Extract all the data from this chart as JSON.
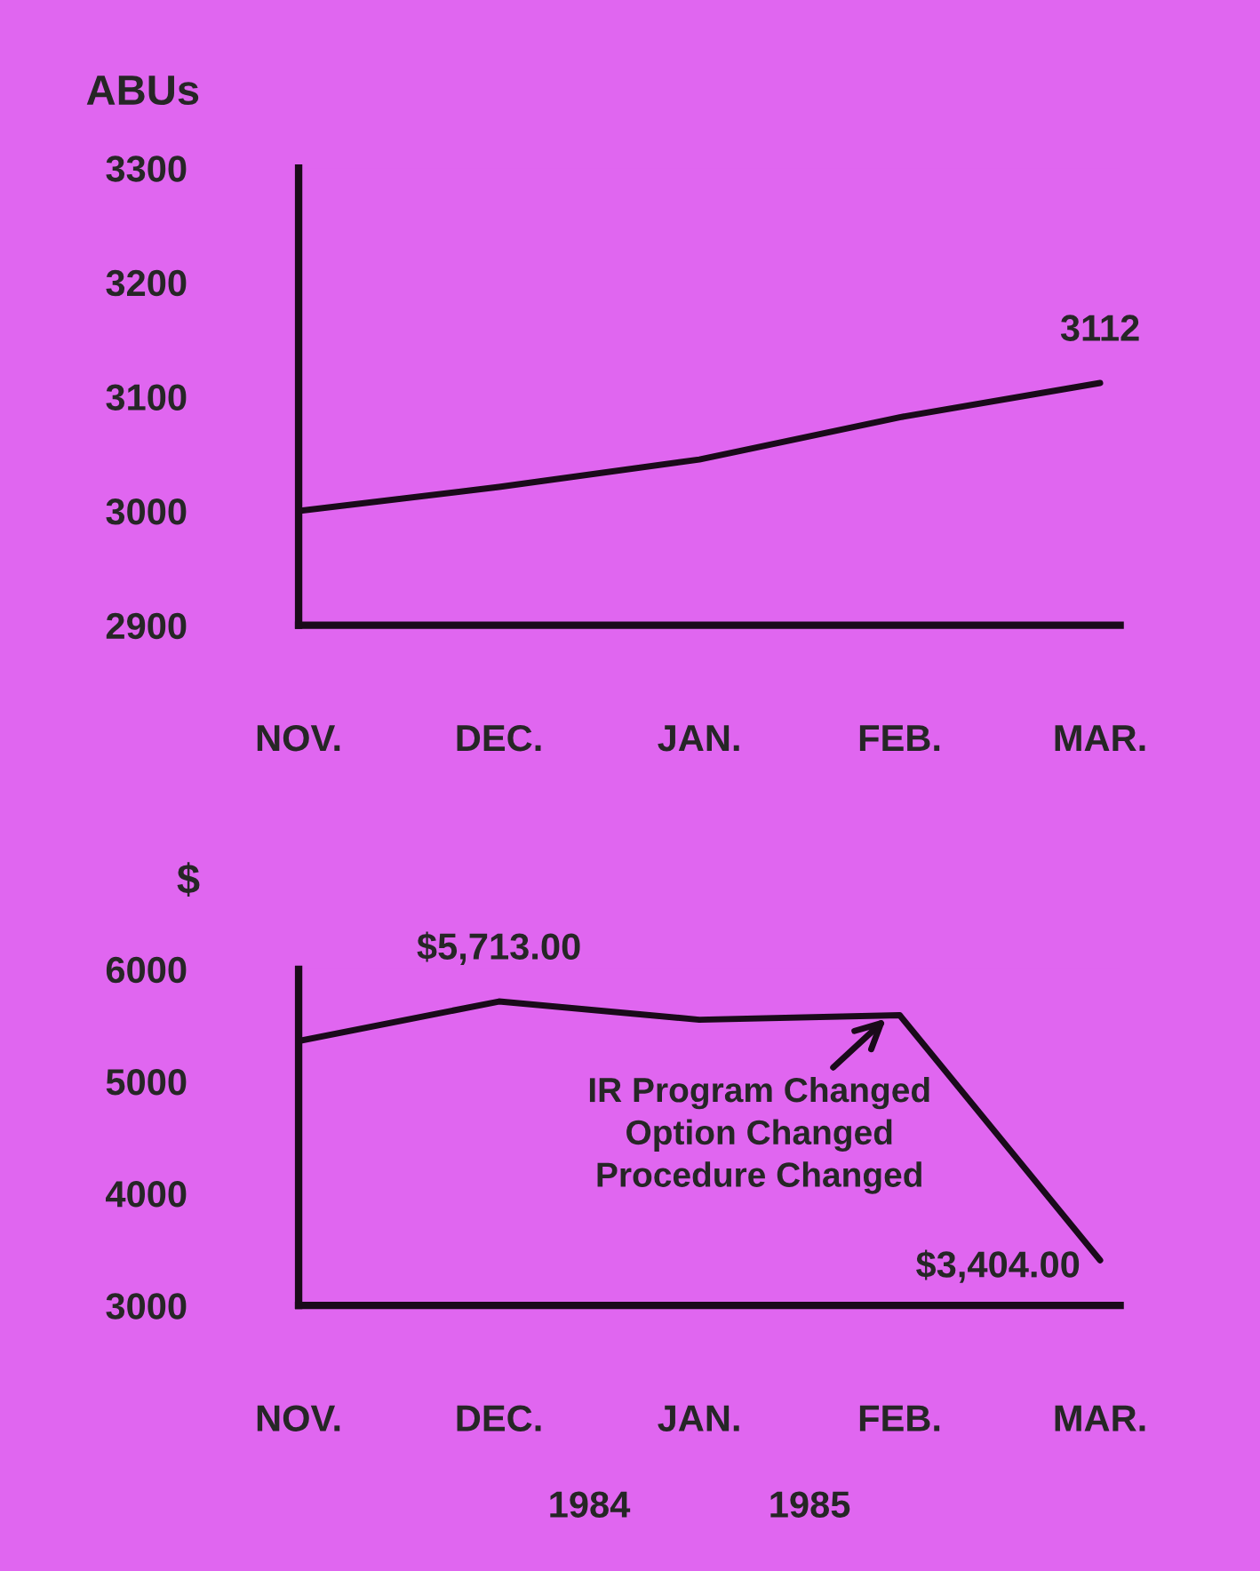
{
  "chart_data": [
    {
      "type": "line",
      "ylabel": "ABUs",
      "categories": [
        "NOV.",
        "DEC.",
        "JAN.",
        "FEB.",
        "MAR."
      ],
      "series": [
        {
          "color": "#1a0a1a",
          "values": [
            3000,
            3021,
            3045,
            3082,
            3112
          ],
          "value_labels": [
            null,
            null,
            null,
            null,
            "3112"
          ]
        }
      ],
      "ylim": [
        2900,
        3300
      ],
      "yticks": [
        2900,
        3000,
        3100,
        3200,
        3300
      ],
      "grid": false,
      "legend": false,
      "marker": "none",
      "line_style": "solid"
    },
    {
      "type": "line",
      "ylabel": "$",
      "categories": [
        "NOV.",
        "DEC.",
        "JAN.",
        "FEB.",
        "MAR."
      ],
      "series": [
        {
          "color": "#1a0a1a",
          "values": [
            5360,
            5713,
            5550,
            5590,
            3404
          ],
          "value_labels": [
            null,
            "$5,713.00",
            null,
            null,
            "$3,404.00"
          ]
        }
      ],
      "ylim": [
        3000,
        6000
      ],
      "yticks": [
        3000,
        4000,
        5000,
        6000
      ],
      "grid": false,
      "legend": false,
      "marker": "none",
      "line_style": "solid",
      "annotations": [
        {
          "text": "IR Program Changed\nOption Changed\nProcedure Changed",
          "x": "FEB.",
          "y": 5590
        },
        "1984",
        "1985"
      ]
    }
  ]
}
